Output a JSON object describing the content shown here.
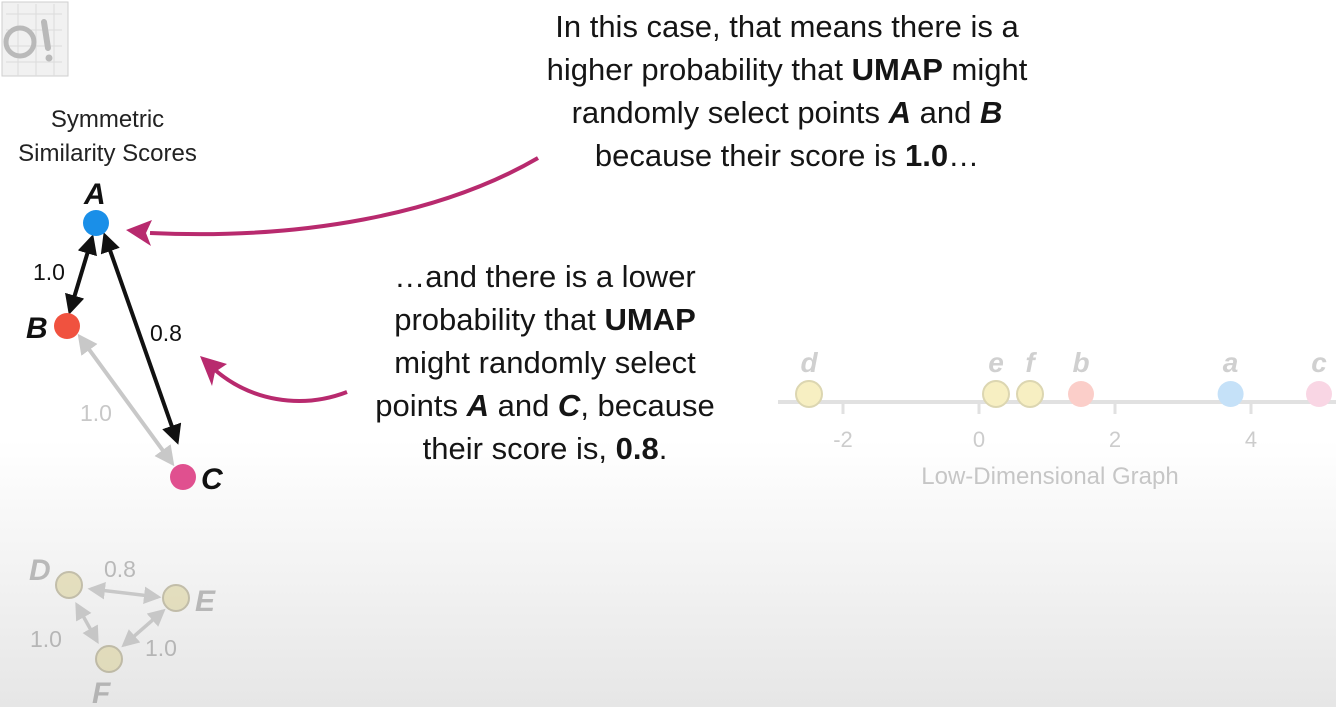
{
  "heading": {
    "line1": "Symmetric",
    "line2": "Similarity Scores"
  },
  "callout_top": {
    "line1": "In this case, that means there is a",
    "line2_pre": "higher probability that ",
    "line2_bold": "UMAP",
    "line2_post": " might",
    "line3_pre": "randomly select points ",
    "line3_a": "A",
    "line3_mid": " and ",
    "line3_b": "B",
    "line4_pre": "because their score is ",
    "line4_bold": "1.0",
    "line4_post": "…"
  },
  "callout_bottom": {
    "line1": "…and there is a lower",
    "line2_pre": "probability that ",
    "line2_bold": "UMAP",
    "line3": "might randomly select",
    "line4_pre": "points ",
    "line4_a": "A",
    "line4_mid": " and ",
    "line4_c": "C",
    "line4_post": ", because",
    "line5_pre": "their score is, ",
    "line5_bold": "0.8",
    "line5_post": "."
  },
  "graph_abc": {
    "nodes": [
      {
        "id": "A",
        "label": "A",
        "color": "#1a8fe8"
      },
      {
        "id": "B",
        "label": "B",
        "color": "#f0523f"
      },
      {
        "id": "C",
        "label": "C",
        "color": "#e0508f"
      }
    ],
    "edges": [
      {
        "from": "A",
        "to": "B",
        "label": "1.0",
        "faded": false
      },
      {
        "from": "A",
        "to": "C",
        "label": "0.8",
        "faded": false
      },
      {
        "from": "B",
        "to": "C",
        "label": "1.0",
        "faded": true
      }
    ]
  },
  "graph_def": {
    "nodes": [
      {
        "id": "D",
        "label": "D"
      },
      {
        "id": "E",
        "label": "E"
      },
      {
        "id": "F",
        "label": "F"
      }
    ],
    "edges": [
      {
        "from": "D",
        "to": "E",
        "label": "0.8"
      },
      {
        "from": "D",
        "to": "F",
        "label": "1.0"
      },
      {
        "from": "E",
        "to": "F",
        "label": "1.0"
      }
    ]
  },
  "low_dim_graph": {
    "caption": "Low-Dimensional Graph",
    "ticks": [
      "-2",
      "0",
      "2",
      "4"
    ],
    "points": [
      {
        "label": "d",
        "value": -2.5,
        "color": "#f6edb8"
      },
      {
        "label": "e",
        "value": 0.25,
        "color": "#f6edb8"
      },
      {
        "label": "f",
        "value": 0.75,
        "color": "#f6edb8"
      },
      {
        "label": "b",
        "value": 1.5,
        "color": "#fbc6c0"
      },
      {
        "label": "a",
        "value": 3.7,
        "color": "#bcdcf7"
      },
      {
        "label": "c",
        "value": 5.0,
        "color": "#f8cfe0"
      }
    ]
  },
  "colors": {
    "arrow": "#b82a6e",
    "dark_edge": "#111111",
    "faded_edge": "#c8c8c8"
  }
}
